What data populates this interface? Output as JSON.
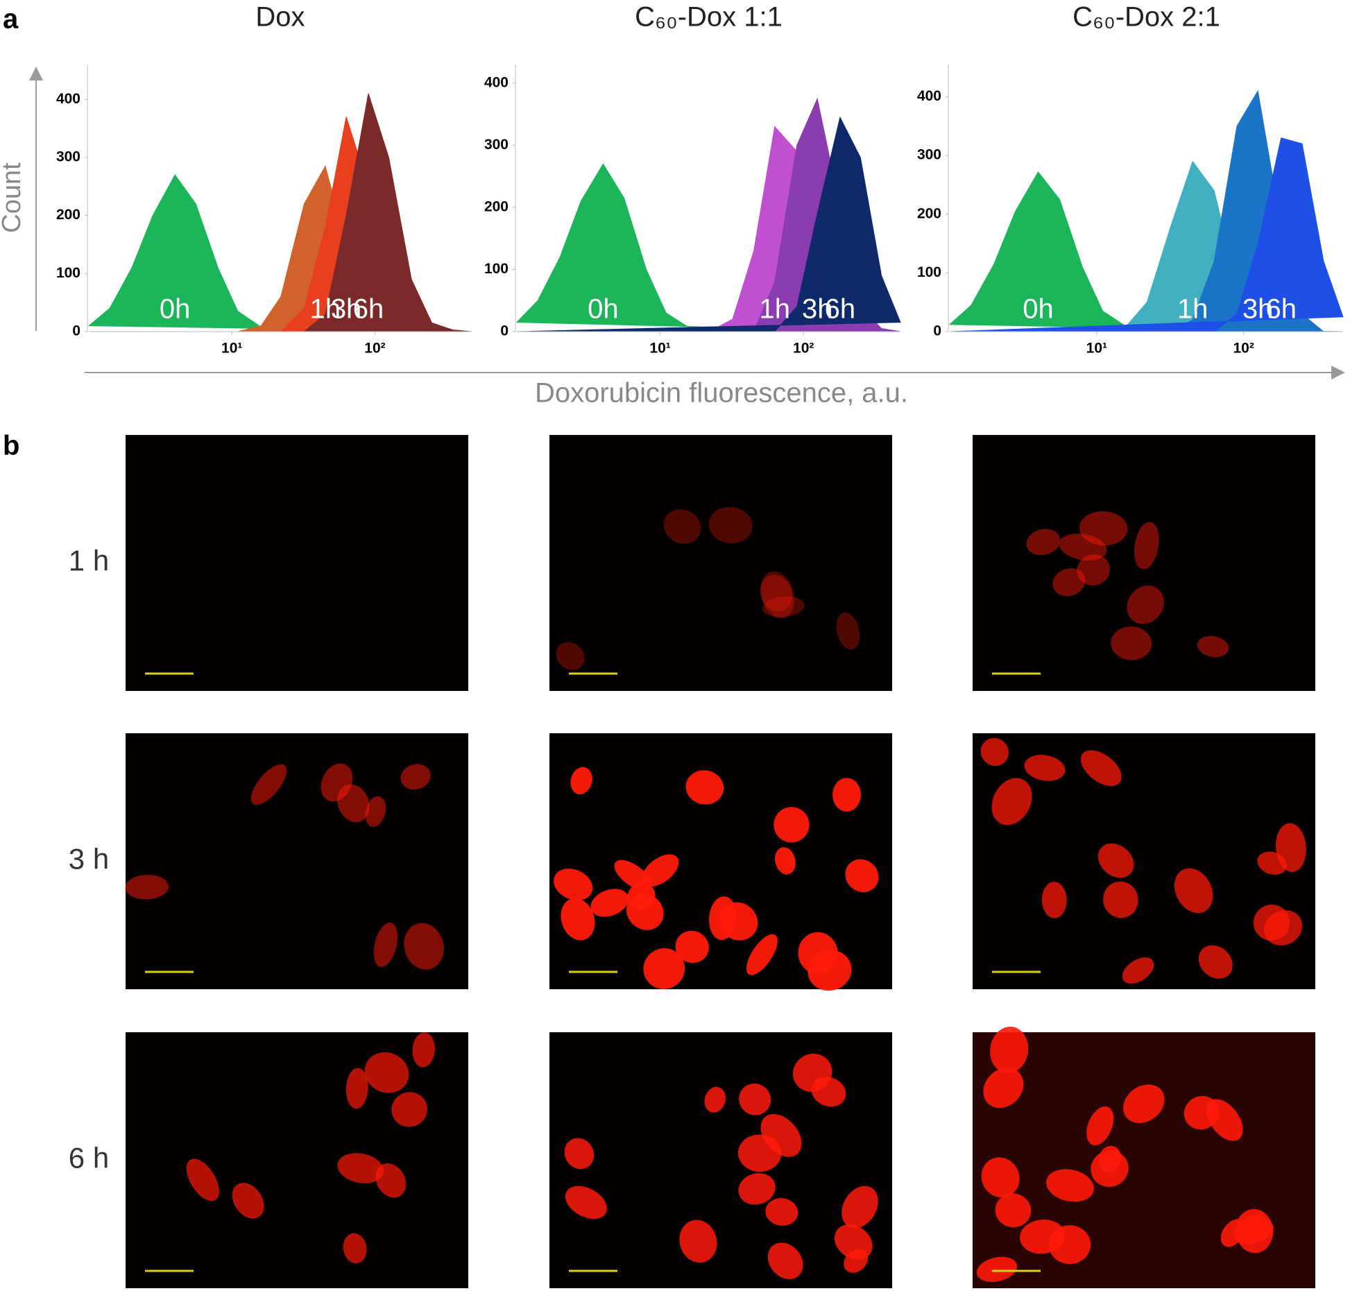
{
  "figure": {
    "panel_labels": [
      "a",
      "b"
    ],
    "y_label": "Count",
    "x_label": "Doxorubicin fluorescence, a.u."
  },
  "chart_data": [
    {
      "type": "area",
      "title": "Dox",
      "log_x": true,
      "x": [
        1,
        1.4,
        2,
        2.8,
        4,
        5.6,
        8,
        11,
        16,
        22,
        32,
        45,
        63,
        90,
        125,
        180,
        250,
        350,
        475
      ],
      "xlim": [
        1,
        475
      ],
      "xticks": [
        {
          "value": 10,
          "label": "10¹"
        },
        {
          "value": 100,
          "label": "10²"
        }
      ],
      "ylim": [
        0,
        460
      ],
      "yticks": [
        0,
        100,
        200,
        300,
        400
      ],
      "series": [
        {
          "name": "0h",
          "color": "#1db55a",
          "values": [
            10,
            40,
            110,
            200,
            270,
            220,
            110,
            35,
            8,
            2,
            0,
            0,
            0,
            0,
            0,
            0,
            0,
            0,
            0
          ]
        },
        {
          "name": "1h",
          "color": "#d2622c",
          "values": [
            0,
            0,
            0,
            0,
            0,
            0,
            0,
            0,
            10,
            60,
            220,
            285,
            150,
            40,
            5,
            0,
            0,
            0,
            0
          ]
        },
        {
          "name": "3h",
          "color": "#e8401f",
          "values": [
            0,
            0,
            0,
            0,
            0,
            0,
            0,
            0,
            0,
            0,
            40,
            180,
            370,
            250,
            60,
            8,
            0,
            0,
            0
          ]
        },
        {
          "name": "6h",
          "color": "#7a2a28",
          "values": [
            0,
            0,
            0,
            0,
            0,
            0,
            0,
            0,
            0,
            0,
            0,
            30,
            200,
            410,
            300,
            90,
            15,
            3,
            0
          ]
        }
      ]
    },
    {
      "type": "area",
      "title": "C₆₀-Dox 1:1",
      "log_x": true,
      "x": [
        1,
        1.4,
        2,
        2.8,
        4,
        5.6,
        8,
        11,
        16,
        22,
        32,
        45,
        63,
        90,
        125,
        180,
        250,
        350,
        475
      ],
      "xlim": [
        1,
        475
      ],
      "xticks": [
        {
          "value": 10,
          "label": "10¹"
        },
        {
          "value": 100,
          "label": "10²"
        }
      ],
      "ylim": [
        0,
        430
      ],
      "yticks": [
        0,
        100,
        200,
        300,
        400
      ],
      "series": [
        {
          "name": "0h",
          "color": "#1db55a",
          "values": [
            15,
            50,
            120,
            210,
            270,
            215,
            100,
            30,
            6,
            1,
            0,
            0,
            0,
            0,
            0,
            0,
            0,
            0,
            0
          ]
        },
        {
          "name": "1h",
          "color": "#c050d0",
          "values": [
            0,
            0,
            0,
            0,
            0,
            0,
            0,
            0,
            0,
            0,
            20,
            130,
            330,
            290,
            80,
            10,
            0,
            0,
            0
          ]
        },
        {
          "name": "3h",
          "color": "#8a3cb0",
          "values": [
            0,
            0,
            0,
            0,
            0,
            0,
            0,
            0,
            0,
            0,
            0,
            0,
            80,
            300,
            375,
            200,
            40,
            5,
            0
          ]
        },
        {
          "name": "6h",
          "color": "#0e2a6a",
          "values": [
            0,
            0,
            0,
            0,
            0,
            0,
            0,
            0,
            0,
            0,
            0,
            0,
            0,
            40,
            190,
            345,
            280,
            90,
            15
          ]
        }
      ]
    },
    {
      "type": "area",
      "title": "C₆₀-Dox 2:1",
      "log_x": true,
      "x": [
        1,
        1.4,
        2,
        2.8,
        4,
        5.6,
        8,
        11,
        16,
        22,
        32,
        45,
        63,
        90,
        125,
        180,
        250,
        350,
        475
      ],
      "xlim": [
        1,
        475
      ],
      "xticks": [
        {
          "value": 10,
          "label": "10¹"
        },
        {
          "value": 100,
          "label": "10²"
        }
      ],
      "ylim": [
        0,
        455
      ],
      "yticks": [
        0,
        100,
        200,
        300,
        400
      ],
      "series": [
        {
          "name": "0h",
          "color": "#1db55a",
          "values": [
            12,
            45,
            115,
            205,
            272,
            225,
            110,
            35,
            8,
            2,
            0,
            0,
            0,
            0,
            0,
            0,
            0,
            0,
            0
          ]
        },
        {
          "name": "1h",
          "color": "#40b0c0",
          "values": [
            0,
            0,
            0,
            0,
            0,
            0,
            0,
            0,
            10,
            50,
            180,
            290,
            240,
            80,
            10,
            0,
            0,
            0,
            0
          ]
        },
        {
          "name": "3h",
          "color": "#1a74c8",
          "values": [
            0,
            0,
            0,
            0,
            0,
            0,
            0,
            0,
            0,
            0,
            0,
            20,
            120,
            350,
            410,
            180,
            30,
            0,
            0
          ]
        },
        {
          "name": "6h",
          "color": "#1e50e8",
          "values": [
            0,
            0,
            0,
            0,
            0,
            0,
            0,
            0,
            0,
            0,
            0,
            0,
            0,
            30,
            150,
            330,
            320,
            120,
            25
          ]
        }
      ]
    }
  ],
  "microscopy": {
    "row_labels": [
      "1 h",
      "3 h",
      "6 h"
    ]
  }
}
